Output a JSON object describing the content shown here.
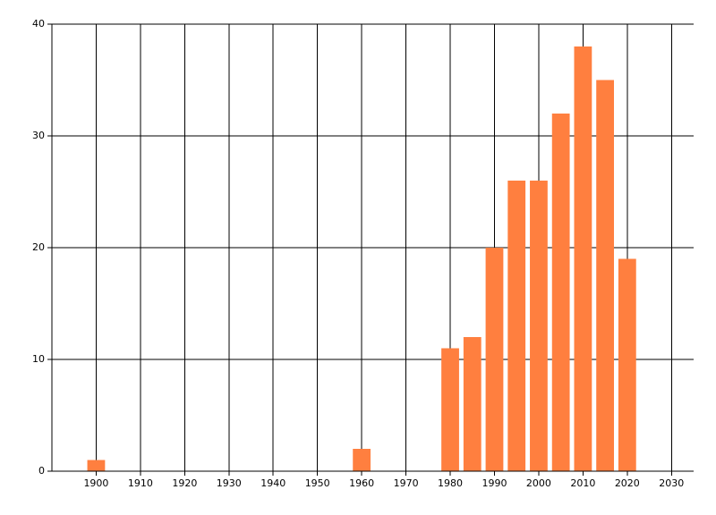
{
  "chart_data": {
    "type": "bar",
    "x": [
      1900,
      1960,
      1980,
      1985,
      1990,
      1995,
      2000,
      2005,
      2010,
      2015,
      2020
    ],
    "values": [
      1,
      2,
      11,
      12,
      20,
      26,
      26,
      32,
      38,
      35,
      19
    ],
    "color": "#ff7f3f",
    "xlim": [
      1890,
      2035
    ],
    "xticks": [
      1900,
      1910,
      1920,
      1930,
      1940,
      1950,
      1960,
      1970,
      1980,
      1990,
      2000,
      2010,
      2020,
      2030
    ],
    "ylim": [
      0,
      40
    ],
    "yticks": [
      0,
      10,
      20,
      30,
      40
    ],
    "grid": true
  }
}
